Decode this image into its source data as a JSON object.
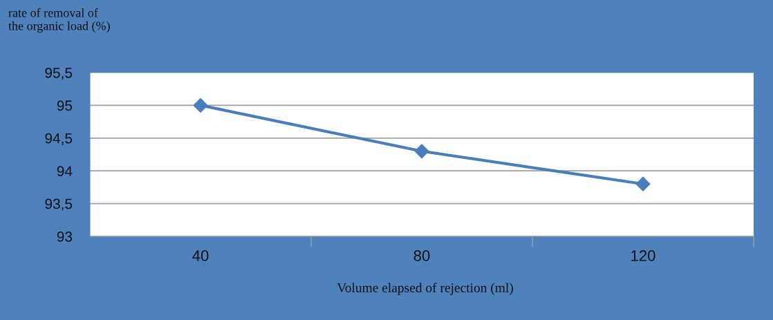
{
  "chart_data": {
    "type": "line",
    "ylabel": "rate of removal of\nthe organic load (%)",
    "xlabel": "Volume elapsed of rejection (ml)",
    "categories": [
      "40",
      "80",
      "120"
    ],
    "series": [
      {
        "color": "#4a7ebb",
        "values": [
          95,
          94.3,
          93.8
        ]
      }
    ],
    "ylim": [
      93,
      95.5
    ],
    "yticks": [
      {
        "value": 93,
        "label": "93"
      },
      {
        "value": 93.5,
        "label": "93,5"
      },
      {
        "value": 94,
        "label": "94"
      },
      {
        "value": 94.5,
        "label": "94,5"
      },
      {
        "value": 95,
        "label": "95"
      },
      {
        "value": 95.5,
        "label": "95,5"
      }
    ],
    "grid": "y",
    "marker": "diamond",
    "line_style": "solid",
    "legend": false
  }
}
